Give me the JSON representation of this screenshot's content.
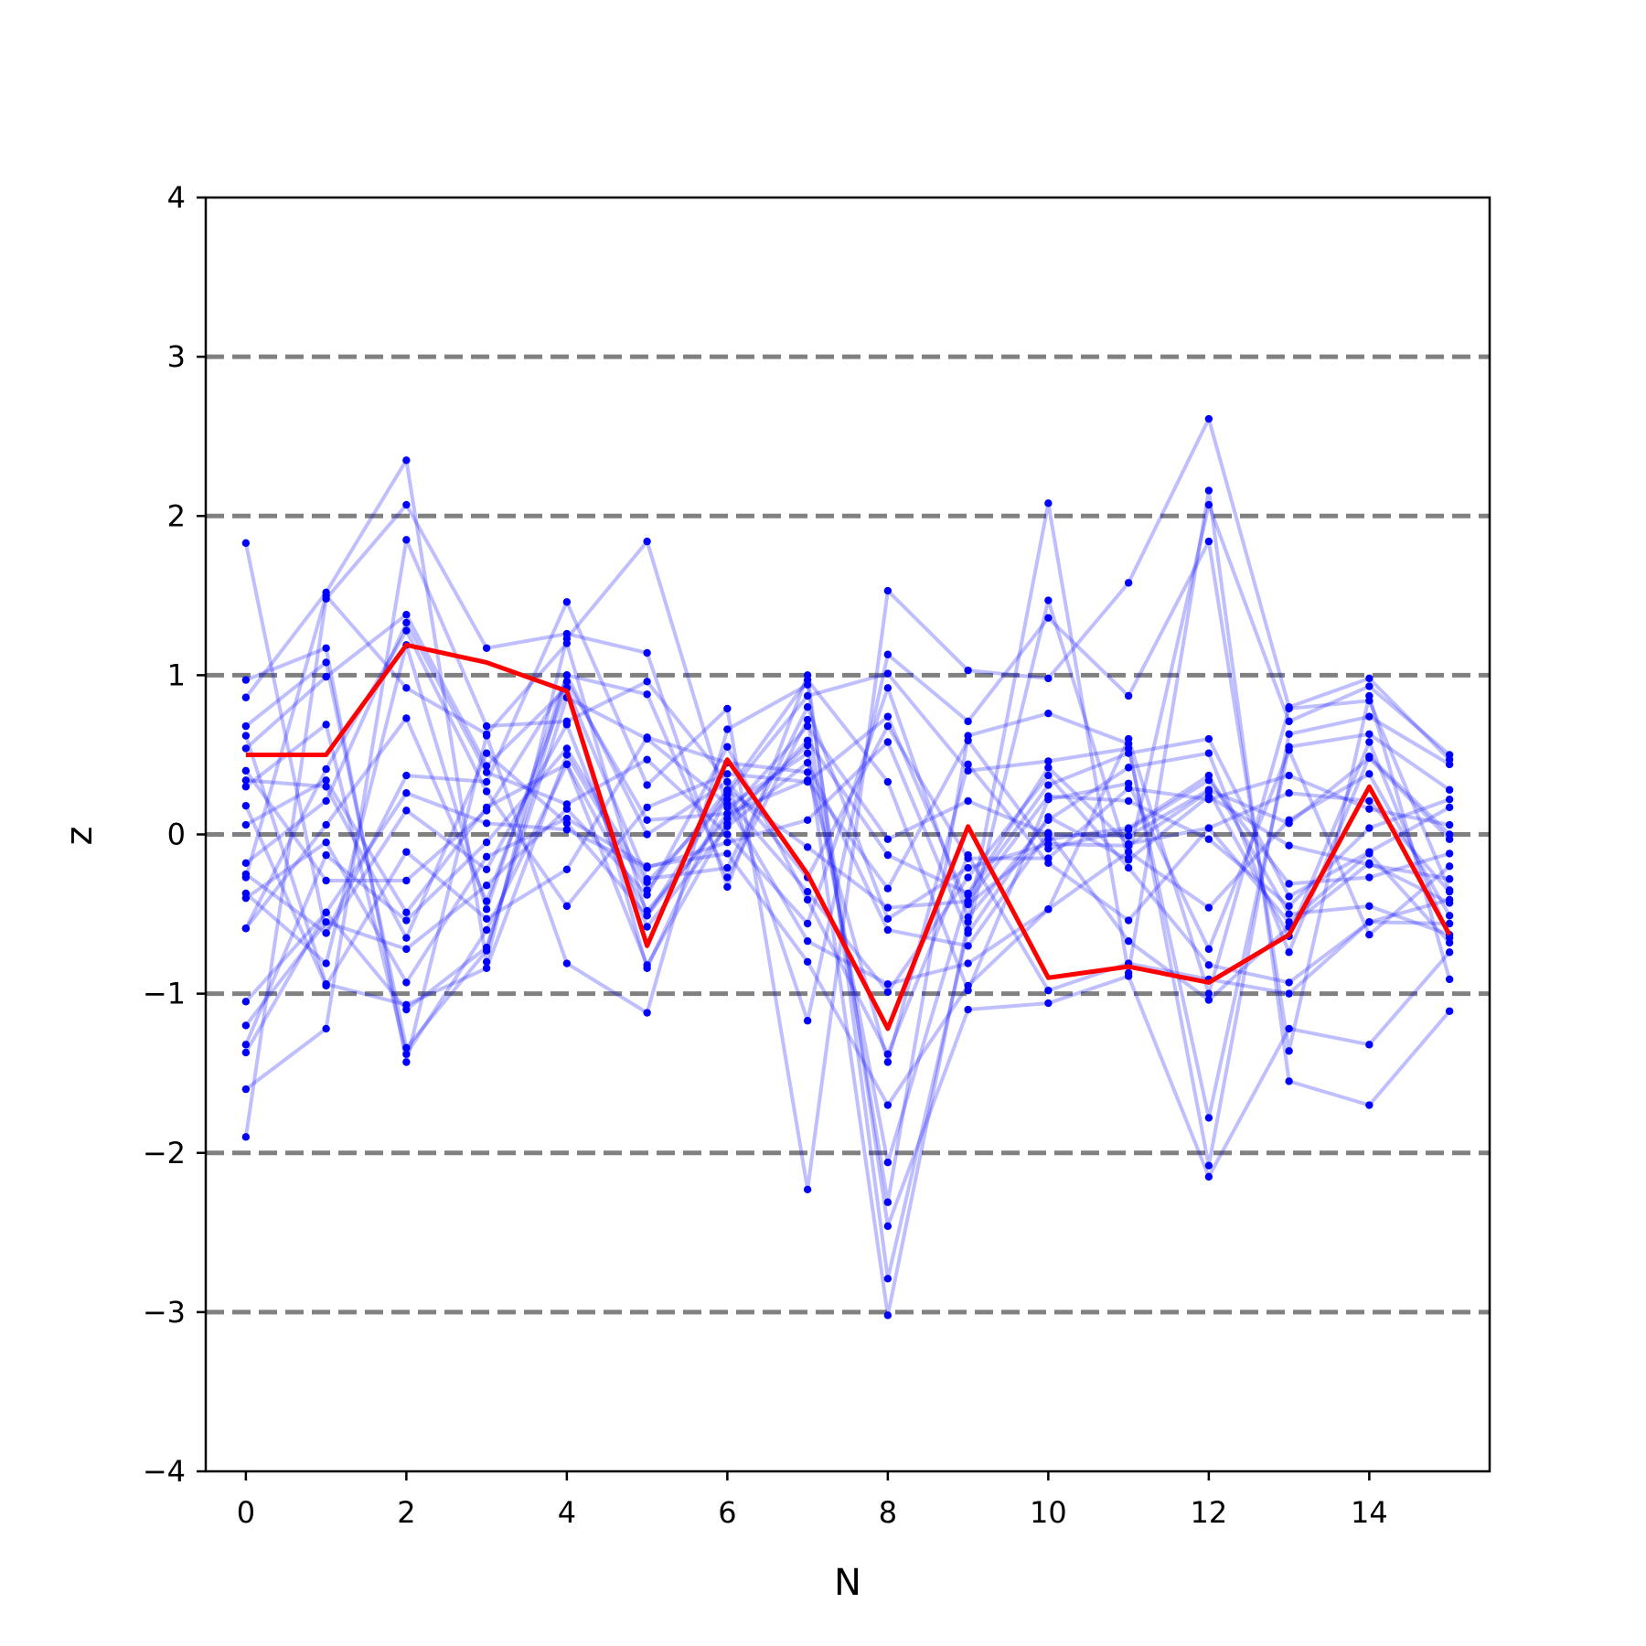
{
  "chart_data": {
    "type": "line",
    "xlabel": "N",
    "ylabel": "z",
    "xlim": [
      -0.5,
      15.5
    ],
    "ylim": [
      -4,
      4
    ],
    "x_ticks": [
      0,
      2,
      4,
      6,
      8,
      10,
      12,
      14
    ],
    "x_tick_labels": [
      "0",
      "2",
      "4",
      "6",
      "8",
      "10",
      "12",
      "14"
    ],
    "y_ticks": [
      -4,
      -3,
      -2,
      -1,
      0,
      1,
      2,
      3,
      4
    ],
    "y_tick_labels": [
      "−4",
      "−3",
      "−2",
      "−1",
      "0",
      "1",
      "2",
      "3",
      "4"
    ],
    "reference_lines": [
      -3,
      -2,
      -1,
      0,
      1,
      2,
      3
    ],
    "reference_line_color": "#808080",
    "samples_color": "#0000ff",
    "highlight_color": "#ff0000",
    "x": [
      0,
      1,
      2,
      3,
      4,
      5,
      6,
      7,
      8,
      9,
      10,
      11,
      12,
      13,
      14,
      15
    ],
    "highlight": {
      "values": [
        0.5,
        0.5,
        1.19,
        1.08,
        0.9,
        -0.7,
        0.47,
        -0.25,
        -1.22,
        0.05,
        -0.9,
        -0.83,
        -0.93,
        -0.63,
        0.3,
        -0.63
      ]
    },
    "samples": [
      {
        "values": [
          1.83,
          -0.62,
          0.37,
          0.33,
          1.46,
          0.31,
          0.79,
          -2.23,
          1.53,
          1.03,
          0.98,
          1.58,
          2.61,
          0.8,
          0.98,
          0.47
        ]
      },
      {
        "values": [
          0.86,
          1.52,
          2.35,
          -0.8,
          1.23,
          1.84,
          0.17,
          0.51,
          -3.02,
          -0.55,
          2.08,
          -0.87,
          2.16,
          -1.55,
          -1.7,
          -1.11
        ]
      },
      {
        "values": [
          -1.9,
          1.48,
          2.07,
          1.17,
          1.26,
          1.14,
          -0.33,
          1.0,
          -2.79,
          -0.6,
          1.47,
          -0.15,
          2.07,
          0.71,
          0.93,
          0.5
        ]
      },
      {
        "values": [
          -1.6,
          -1.22,
          1.85,
          0.68,
          0.71,
          0.96,
          0.33,
          -1.17,
          1.13,
          0.71,
          1.36,
          0.87,
          1.84,
          -1.36,
          0.87,
          -0.91
        ]
      },
      {
        "values": [
          0.97,
          1.17,
          -1.43,
          0.62,
          -0.81,
          -1.12,
          0.66,
          0.94,
          -2.46,
          -1.1,
          -1.06,
          -0.89,
          -2.15,
          -1.22,
          -1.32,
          -0.74
        ]
      },
      {
        "values": [
          0.68,
          1.08,
          -1.34,
          -0.73,
          1.0,
          0.88,
          -0.27,
          0.72,
          -2.31,
          0.62,
          0.76,
          0.57,
          -2.08,
          0.63,
          0.74,
          0.44
        ]
      },
      {
        "values": [
          0.54,
          0.99,
          1.38,
          0.43,
          0.92,
          -0.84,
          0.25,
          0.87,
          1.01,
          0.4,
          0.46,
          0.54,
          -1.78,
          0.55,
          0.63,
          0.28
        ]
      },
      {
        "values": [
          0.3,
          0.69,
          -1.38,
          -0.6,
          0.44,
          -0.48,
          0.1,
          0.56,
          -2.06,
          -0.38,
          0.31,
          0.51,
          0.6,
          -0.39,
          -0.11,
          0.17
        ]
      },
      {
        "values": [
          -0.18,
          0.21,
          1.33,
          0.39,
          0.19,
          0.47,
          0.0,
          -0.56,
          0.92,
          -0.52,
          0.09,
          0.42,
          0.51,
          -0.74,
          0.49,
          0.0
        ]
      },
      {
        "values": [
          -0.4,
          -0.05,
          -0.93,
          -0.14,
          0.1,
          -0.2,
          -0.12,
          -0.8,
          -1.7,
          -0.95,
          -0.47,
          -0.11,
          -0.46,
          0.09,
          0.38,
          -0.51
        ]
      },
      {
        "values": [
          -0.59,
          0.41,
          1.28,
          0.27,
          -0.45,
          0.17,
          0.38,
          0.33,
          0.74,
          -0.44,
          -0.03,
          0.04,
          0.37,
          -0.5,
          -0.45,
          -0.63
        ]
      },
      {
        "values": [
          -1.32,
          -0.13,
          -0.54,
          -0.05,
          0.54,
          -0.3,
          0.22,
          -0.36,
          -0.99,
          -0.27,
          0.37,
          -0.21,
          -0.82,
          -0.93,
          -0.55,
          -0.41
        ]
      },
      {
        "values": [
          -1.05,
          -0.49,
          0.26,
          0.07,
          0.03,
          -0.21,
          -0.05,
          0.09,
          0.58,
          -0.62,
          0.11,
          -0.16,
          0.24,
          -0.07,
          -0.19,
          -0.28
        ]
      },
      {
        "values": [
          0.18,
          -0.95,
          -0.11,
          -0.53,
          -0.22,
          0.61,
          0.45,
          0.39,
          -1.43,
          0.44,
          -0.18,
          -0.54,
          0.04,
          0.26,
          0.21,
          -0.36
        ]
      },
      {
        "values": [
          -0.25,
          -0.62,
          0.15,
          -0.22,
          0.69,
          -0.58,
          0.05,
          0.45,
          -0.6,
          -0.7,
          0.01,
          -0.67,
          -1.04,
          -0.58,
          -0.18,
          -0.43
        ]
      },
      {
        "values": [
          0.34,
          0.3,
          -0.65,
          0.51,
          0.07,
          -0.51,
          0.27,
          0.97,
          0.33,
          -0.98,
          0.22,
          0.32,
          -0.72,
          0.53,
          -0.63,
          -0.2
        ]
      },
      {
        "values": [
          -1.2,
          -0.55,
          -0.72,
          -0.32,
          0.16,
          -0.38,
          0.55,
          -0.41,
          -1.38,
          -0.13,
          -0.98,
          -0.81,
          -0.91,
          -1.0,
          -0.55,
          -0.56
        ]
      },
      {
        "values": [
          0.4,
          -0.29,
          -0.29,
          0.15,
          0.96,
          0.09,
          0.13,
          0.68,
          -0.03,
          0.21,
          0.0,
          -0.01,
          0.28,
          0.07,
          0.48,
          -0.03
        ]
      },
      {
        "values": [
          -0.59,
          0.06,
          0.73,
          -0.42,
          0.92,
          -0.28,
          -0.21,
          0.8,
          -0.53,
          -0.21,
          -0.06,
          -0.07,
          0.27,
          -0.64,
          0.58,
          -0.65
        ]
      },
      {
        "values": [
          -1.37,
          -0.49,
          -1.1,
          -0.71,
          0.86,
          0.6,
          0.19,
          -0.67,
          -0.94,
          -0.81,
          -0.47,
          0.6,
          -1.0,
          0.79,
          0.84,
          -0.35
        ]
      },
      {
        "values": [
          0.06,
          0.34,
          -0.49,
          0.17,
          0.44,
          -0.82,
          0.07,
          0.59,
          -0.13,
          -0.37,
          0.42,
          -0.06,
          0.04,
          -0.55,
          -0.12,
          -0.68
        ]
      },
      {
        "values": [
          -0.37,
          -0.81,
          1.19,
          -0.47,
          1.0,
          0.0,
          0.33,
          -0.27,
          0.68,
          -0.15,
          -0.15,
          0.29,
          0.22,
          0.37,
          0.16,
          0.06
        ]
      },
      {
        "values": [
          0.62,
          -0.94,
          -1.07,
          -0.84,
          0.5,
          -0.35,
          0.28,
          -0.08,
          -0.46,
          -0.42,
          0.24,
          0.21,
          -0.03,
          -0.45,
          0.04,
          0.22
        ]
      },
      {
        "values": [
          -0.27,
          1.5,
          0.92,
          0.63,
          1.2,
          -0.51,
          0.13,
          0.34,
          -0.34,
          0.59,
          -0.09,
          0.03,
          0.34,
          -0.31,
          -0.27,
          -0.12
        ]
      }
    ]
  }
}
